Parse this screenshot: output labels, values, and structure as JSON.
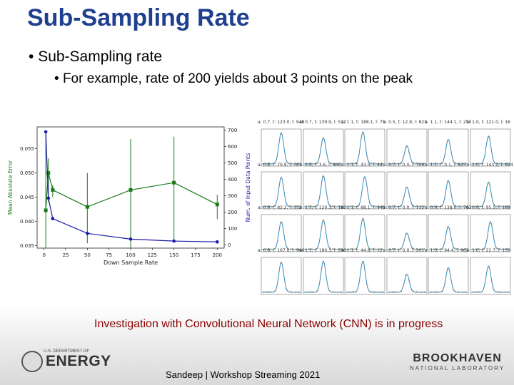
{
  "slide": {
    "title": "Sub-Sampling Rate",
    "bullet1": "Sub-Sampling rate",
    "bullet2": "For example, rate of 200 yields about 3 points on the peak",
    "note": "Investigation with Convolutional Neural Network (CNN) is in progress",
    "footer": "Sandeep | Workshop Streaming 2021",
    "doe_logo_small": "U.S. DEPARTMENT OF",
    "doe_logo_big": "ENERGY",
    "bnl_logo_big": "BROOKHAVEN",
    "bnl_logo_small": "NATIONAL LABORATORY"
  },
  "colors": {
    "title": "#1f3f8f",
    "note": "#8b0000",
    "mae_series": "#1a7a1a",
    "points_series": "#1a1aaa",
    "panel_data": "#d08a3a",
    "panel_fit": "#3a8fc0"
  },
  "chart_data": [
    {
      "type": "line",
      "xlabel": "Down Sample Rate",
      "ylabel": "Mean Absolute Error",
      "y2label": "Num. of Input Data Points",
      "x_ticks": [
        0,
        25,
        50,
        75,
        100,
        125,
        150,
        175,
        200
      ],
      "y_ticks": [
        0.035,
        0.04,
        0.045,
        0.05,
        0.055
      ],
      "y2_ticks": [
        0,
        100,
        200,
        300,
        400,
        500,
        600,
        700
      ],
      "ylim": [
        0.0345,
        0.0595
      ],
      "y2lim": [
        -20,
        720
      ],
      "series": [
        {
          "axis": "left",
          "x": [
            2,
            5,
            10,
            50,
            100,
            150,
            200
          ],
          "y": [
            0.0423,
            0.05,
            0.0465,
            0.043,
            0.0465,
            0.048,
            0.0435
          ],
          "err_low": [
            0.0345,
            0.044,
            0.045,
            0.0355,
            0.0345,
            0.036,
            0.0405
          ],
          "err_high": [
            0.058,
            0.053,
            0.0475,
            0.05,
            0.057,
            0.0575,
            0.0455
          ]
        },
        {
          "axis": "right",
          "x": [
            2,
            5,
            10,
            50,
            100,
            150,
            200
          ],
          "y": [
            690,
            285,
            160,
            70,
            35,
            23,
            18
          ]
        }
      ]
    },
    {
      "type": "line",
      "grid": "4x6 small multiples",
      "panels": [
        {
          "title": "a: 0.7, t: 123.0, ī: 948",
          "peak": 0.95,
          "center": 0.5
        },
        {
          "title": "a: 0.7, t: 139.9, ī: 512",
          "peak": 0.8,
          "center": 0.5
        },
        {
          "title": "a: 1.1, t: 188.1, ī: 75",
          "peak": 0.98,
          "center": 0.45
        },
        {
          "title": "a: 0.5, t: 12.9, ī: 823",
          "peak": 0.55,
          "center": 0.5
        },
        {
          "title": "a: 1.1, t: 144.1, ī: 250",
          "peak": 0.75,
          "center": 0.5
        },
        {
          "title": "a: 1.0, t: 121.0, ī: 16",
          "peak": 0.85,
          "center": 0.45
        },
        {
          "title": "a: 0.8, t: 70.9, ī: 787",
          "peak": 0.9,
          "center": 0.5
        },
        {
          "title": "a: 0.9, t: 3.6, ī: 466",
          "peak": 0.95,
          "center": 0.5
        },
        {
          "title": "a: 1.1, t: 43.5, ī: 44",
          "peak": 0.92,
          "center": 0.5
        },
        {
          "title": "a: 0.7, t: 0.0, ī: 709",
          "peak": 0.6,
          "center": 0.5
        },
        {
          "title": "a: 1.1, t: 0.1, ī: 825",
          "peak": 0.8,
          "center": 0.5
        },
        {
          "title": "a: 1.0, t: 143.2, ī: 824",
          "peak": 0.75,
          "center": 0.45
        },
        {
          "title": "a: 0.9, t: 82.2, ī: 352",
          "peak": 0.85,
          "center": 0.5
        },
        {
          "title": "a: 1.1, t: 120.3, ī: 185",
          "peak": 0.9,
          "center": 0.5
        },
        {
          "title": "a: 1.1, t: 88.1, ī: 949",
          "peak": 0.95,
          "center": 0.45
        },
        {
          "title": "a: 0.7, t: 0.0, ī: 112",
          "peak": 0.5,
          "center": 0.5
        },
        {
          "title": "a: 0.9, t: 138.0, ī: 763",
          "peak": 0.7,
          "center": 0.5
        },
        {
          "title": "a: 0.9, t: 95.5, ī: 189",
          "peak": 0.85,
          "center": 0.5
        },
        {
          "title": "a: 0.8, t: 167.0, ī: 946",
          "peak": 0.92,
          "center": 0.5
        },
        {
          "title": "a: 1.1, t: 180.1, ī: 290",
          "peak": 0.95,
          "center": 0.5
        },
        {
          "title": "a: 1.1, t: 44.8, ī: 12",
          "peak": 0.95,
          "center": 0.45
        },
        {
          "title": "a: 0.7, t: 0.0, ī: 201",
          "peak": 0.55,
          "center": 0.5
        },
        {
          "title": "a: 1.0, t: 94.4, ī: 962",
          "peak": 0.75,
          "center": 0.5
        },
        {
          "title": "a: 1.0, t: 22.7, ī: 150",
          "peak": 0.8,
          "center": 0.45
        }
      ]
    }
  ]
}
